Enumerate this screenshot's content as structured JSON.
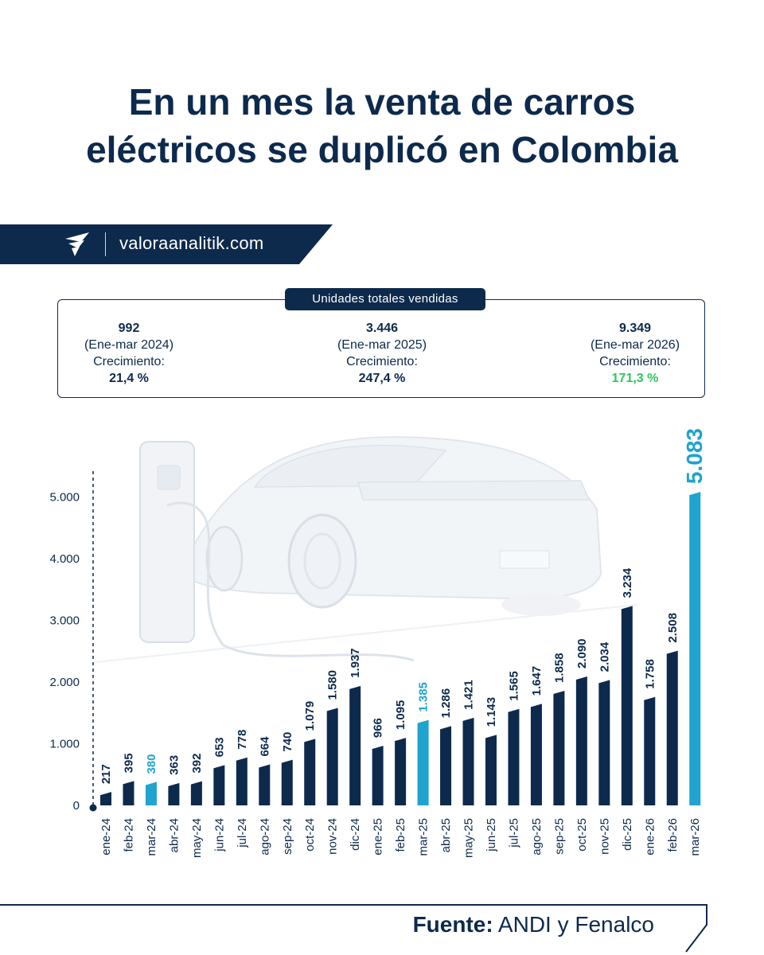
{
  "title": "En un mes la venta de carros eléctricos se duplicó en Colombia",
  "brand": {
    "text": "valoraanalitik.com",
    "logo_icon": "valora-analitik-logo-icon"
  },
  "summary": {
    "label": "Unidades totales vendidas",
    "columns": [
      {
        "value": "992",
        "period": "(Ene-mar 2024)",
        "growth_label": "Crecimiento:",
        "growth": "21,4 %"
      },
      {
        "value": "3.446",
        "period": "(Ene-mar 2025)",
        "growth_label": "Crecimiento:",
        "growth": "247,4 %"
      },
      {
        "value": "9.349",
        "period": "(Ene-mar 2026)",
        "growth_label": "Crecimiento:",
        "growth": "171,3 %"
      }
    ]
  },
  "chart_data": {
    "type": "bar",
    "categories": [
      "ene-24",
      "feb-24",
      "mar-24",
      "abr-24",
      "may-24",
      "jun-24",
      "jul-24",
      "ago-24",
      "sep-24",
      "oct-24",
      "nov-24",
      "dic-24",
      "ene-25",
      "feb-25",
      "mar-25",
      "abr-25",
      "may-25",
      "jun-25",
      "jul-25",
      "ago-25",
      "sep-25",
      "oct-25",
      "nov-25",
      "dic-25",
      "ene-26",
      "feb-26",
      "mar-26"
    ],
    "values": [
      217,
      395,
      380,
      363,
      392,
      653,
      778,
      664,
      740,
      1079,
      1580,
      1937,
      966,
      1095,
      1385,
      1286,
      1421,
      1143,
      1565,
      1647,
      1858,
      2090,
      2034,
      3234,
      1758,
      2508,
      5083
    ],
    "value_labels": [
      "217",
      "395",
      "380",
      "363",
      "392",
      "653",
      "778",
      "664",
      "740",
      "1.079",
      "1.580",
      "1.937",
      "966",
      "1.095",
      "1.385",
      "1.286",
      "1.421",
      "1.143",
      "1.565",
      "1.647",
      "1.858",
      "2.090",
      "2.034",
      "3.234",
      "1.758",
      "2.508",
      "5.083"
    ],
    "highlighted": [
      "mar-24",
      "mar-25",
      "mar-26"
    ],
    "yticks": [
      0,
      1000,
      2000,
      3000,
      4000,
      5000
    ],
    "ytick_labels": [
      "0",
      "1.000",
      "2.000",
      "3.000",
      "4.000",
      "5.000"
    ],
    "ylim": [
      0,
      5000
    ],
    "grid": false,
    "colors": {
      "bar": "#0d2a4d",
      "highlight": "#1fa3cf",
      "growth_highlight": "#2ec760"
    }
  },
  "footer": {
    "source_label": "Fuente:",
    "source_text": "ANDI y Fenalco"
  }
}
